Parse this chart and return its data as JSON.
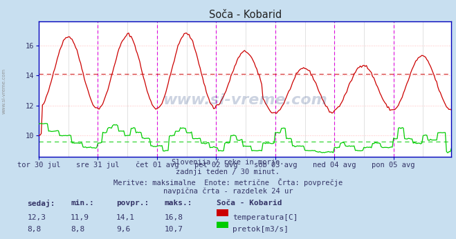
{
  "title": "Soča - Kobarid",
  "bg_color": "#c8dff0",
  "plot_bg_color": "#ffffff",
  "temp_color": "#cc0000",
  "flow_color": "#00cc00",
  "vline_color": "#dd00dd",
  "hgrid_color": "#ffbbbb",
  "vgrid_color": "#cccccc",
  "axis_color": "#0000bb",
  "text_color": "#333366",
  "temp_avg": 14.1,
  "flow_avg": 9.6,
  "subtitle1": "Slovenija / reke in morje.",
  "subtitle2": "zadnji teden / 30 minut.",
  "subtitle3": "Meritve: maksimalne  Enote: metrične  Črta: povprečje",
  "subtitle4": "navpična črta - razdelek 24 ur",
  "xtick_labels": [
    "tor 30 jul",
    "sre 31 jul",
    "čet 01 avg",
    "pet 02 avg",
    "sob 03 avg",
    "ned 04 avg",
    "pon 05 avg"
  ],
  "stats_header": [
    "sedaj:",
    "min.:",
    "povpr.:",
    "maks.:",
    "Soča - Kobarid"
  ],
  "stats_temp": [
    "12,3",
    "11,9",
    "14,1",
    "16,8"
  ],
  "stats_flow": [
    "8,8",
    "8,8",
    "9,6",
    "10,7"
  ],
  "legend_temp": "temperatura[C]",
  "legend_flow": "pretok[m3/s]",
  "watermark": "www.si-vreme.com",
  "n_days": 7,
  "n_per_day": 48
}
